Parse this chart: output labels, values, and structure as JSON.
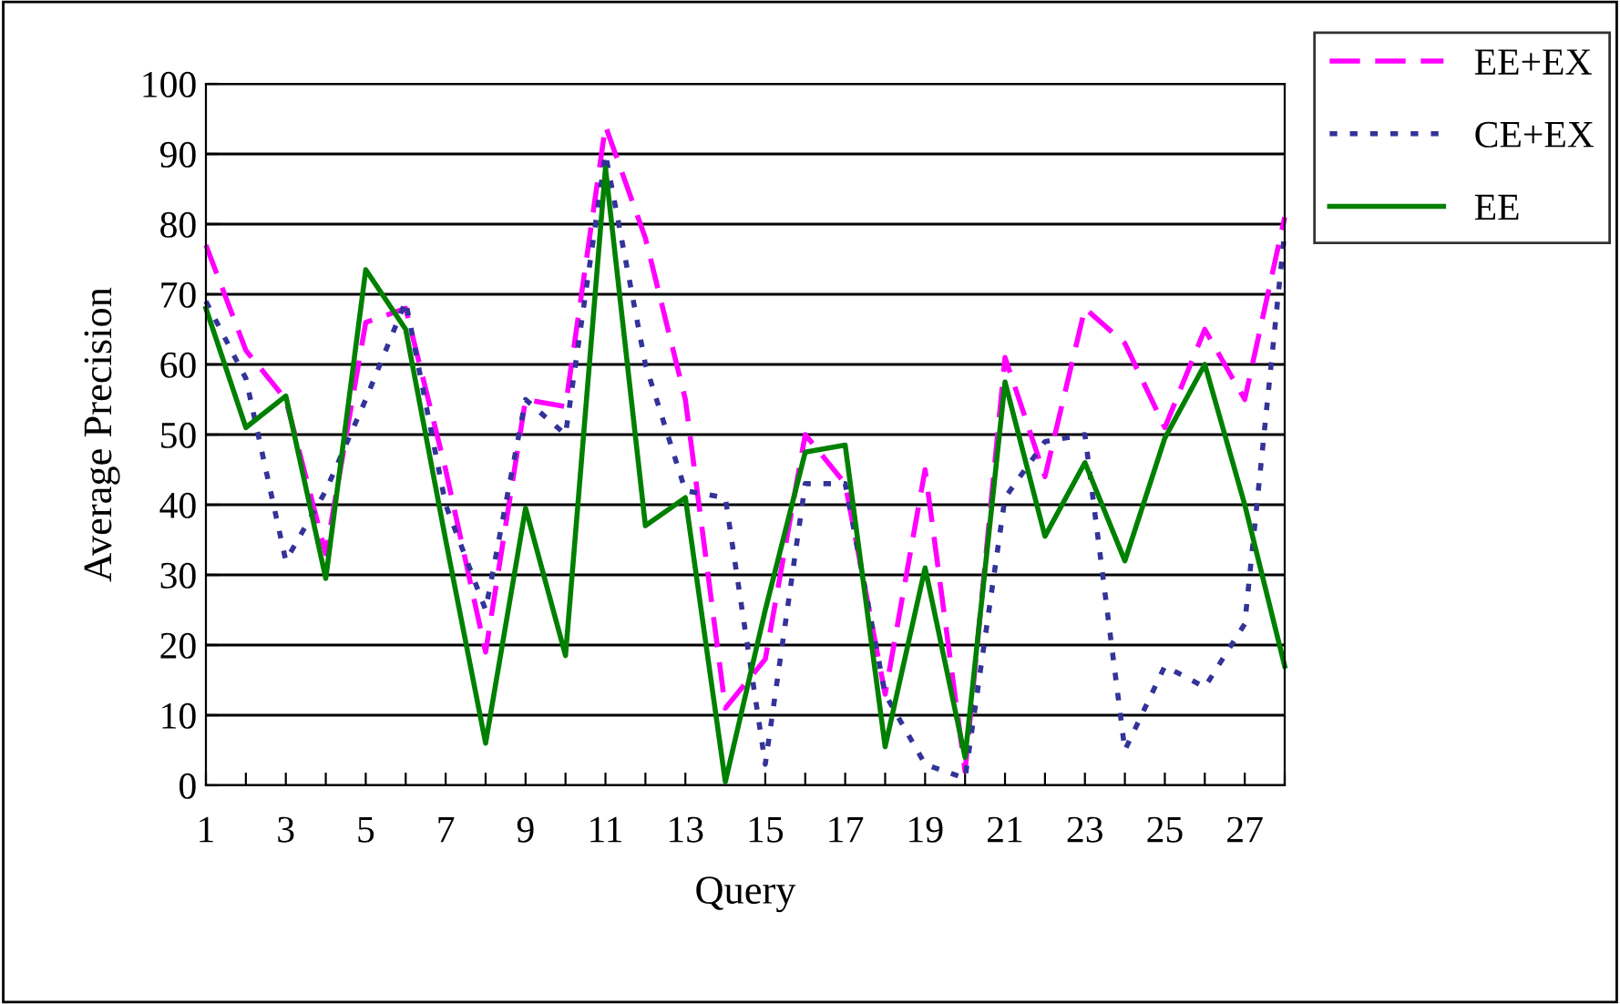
{
  "chart_data": {
    "type": "line",
    "xlabel": "Query",
    "ylabel": "Average Precision",
    "x": [
      1,
      2,
      3,
      4,
      5,
      6,
      7,
      8,
      9,
      10,
      11,
      12,
      13,
      14,
      15,
      16,
      17,
      18,
      19,
      20,
      21,
      22,
      23,
      24,
      25,
      26,
      27,
      28
    ],
    "xlim": [
      1,
      28
    ],
    "xticks": [
      1,
      {
        "value": 2,
        "label": null
      },
      3,
      {
        "value": 4,
        "label": null
      },
      5,
      {
        "value": 6,
        "label": null
      },
      7,
      {
        "value": 8,
        "label": null
      },
      9,
      {
        "value": 10,
        "label": null
      },
      11,
      {
        "value": 12,
        "label": null
      },
      13,
      {
        "value": 14,
        "label": null
      },
      15,
      {
        "value": 16,
        "label": null
      },
      17,
      {
        "value": 18,
        "label": null
      },
      19,
      {
        "value": 20,
        "label": null
      },
      21,
      {
        "value": 22,
        "label": null
      },
      23,
      {
        "value": 24,
        "label": null
      },
      25,
      {
        "value": 26,
        "label": null
      },
      27,
      {
        "value": 28,
        "label": null
      }
    ],
    "ylim": [
      0,
      100
    ],
    "yticks": [
      0,
      10,
      20,
      30,
      40,
      50,
      60,
      70,
      80,
      90,
      100
    ],
    "grid": "y",
    "legend": "top right",
    "marker": "none",
    "series": [
      {
        "name": "EE+EX",
        "color": "#ff00ff",
        "line_style": "dashed",
        "values": [
          77,
          62,
          55,
          33,
          66,
          68,
          45,
          19,
          55,
          54,
          94,
          78,
          55,
          11,
          18,
          50,
          43,
          13,
          45,
          2,
          61,
          44,
          68,
          63,
          51,
          65,
          55,
          81
        ]
      },
      {
        "name": "CE+EX",
        "color": "#333399",
        "line_style": "dotted",
        "values": [
          69,
          58,
          32,
          42,
          55,
          69,
          40,
          25,
          55,
          50,
          90,
          60,
          42,
          41,
          3,
          43,
          43,
          13,
          3,
          1,
          41,
          49,
          50,
          5,
          17,
          14,
          23,
          79
        ]
      },
      {
        "name": "EE",
        "color": "#008000",
        "line_style": "solid",
        "values": [
          68,
          51,
          55.5,
          29.5,
          73.5,
          65,
          35,
          6,
          39.5,
          18.5,
          88,
          37,
          41,
          0.5,
          25,
          47.5,
          48.5,
          5.5,
          31,
          4,
          57.5,
          35.5,
          46,
          32,
          49.5,
          60,
          40,
          17
        ]
      }
    ]
  }
}
